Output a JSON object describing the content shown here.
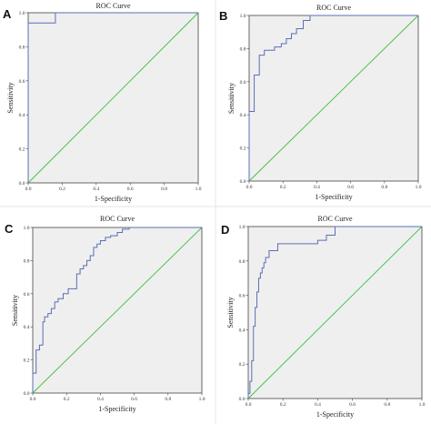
{
  "chart_data": [
    {
      "type": "line",
      "panel": "A",
      "title": "ROC Curve",
      "xlabel": "1-Specificity",
      "ylabel": "Sensitivity",
      "xlim": [
        0,
        1
      ],
      "ylim": [
        0,
        1
      ],
      "xticks": [
        "0.0",
        "0.2",
        "0.4",
        "0.6",
        "0.8",
        "1.0"
      ],
      "yticks": [
        "0.0",
        "0.2",
        "0.4",
        "0.6",
        "0.8",
        "1.0"
      ],
      "series": [
        {
          "x": [
            0,
            0,
            0.16,
            0.16,
            1
          ],
          "y": [
            0,
            0.94,
            0.94,
            1,
            1
          ]
        },
        {
          "x": [
            0,
            1
          ],
          "y": [
            0,
            1
          ]
        }
      ],
      "colors": {
        "roc": "#5a6fb4",
        "reference": "#3fbf3f"
      }
    },
    {
      "type": "line",
      "panel": "B",
      "title": "ROC Curve",
      "xlabel": "1-Specificity",
      "ylabel": "Sensitivity",
      "xlim": [
        0,
        1
      ],
      "ylim": [
        0,
        1
      ],
      "xticks": [
        "0.0",
        "0.2",
        "0.4",
        "0.6",
        "0.8",
        "1.0"
      ],
      "yticks": [
        "0.0",
        "0.2",
        "0.4",
        "0.6",
        "0.8",
        "1.0"
      ],
      "series": [
        {
          "x": [
            0,
            0,
            0.03,
            0.03,
            0.06,
            0.06,
            0.09,
            0.09,
            0.15,
            0.15,
            0.19,
            0.19,
            0.22,
            0.22,
            0.25,
            0.25,
            0.28,
            0.28,
            0.32,
            0.32,
            0.36,
            0.36,
            1
          ],
          "y": [
            0,
            0.42,
            0.42,
            0.64,
            0.64,
            0.76,
            0.76,
            0.79,
            0.79,
            0.81,
            0.81,
            0.83,
            0.83,
            0.86,
            0.86,
            0.89,
            0.89,
            0.92,
            0.92,
            0.97,
            0.97,
            1,
            1
          ]
        },
        {
          "x": [
            0,
            1
          ],
          "y": [
            0,
            1
          ]
        }
      ],
      "colors": {
        "roc": "#5a6fb4",
        "reference": "#3fbf3f"
      }
    },
    {
      "type": "line",
      "panel": "C",
      "title": "ROC Curve",
      "xlabel": "1-Specificity",
      "ylabel": "Sensitivity",
      "xlim": [
        0,
        1
      ],
      "ylim": [
        0,
        1
      ],
      "xticks": [
        "0.0",
        "0.2",
        "0.4",
        "0.6",
        "0.8",
        "1.0"
      ],
      "yticks": [
        "0.0",
        "0.2",
        "0.4",
        "0.6",
        "0.8",
        "1.0"
      ],
      "series": [
        {
          "x": [
            0,
            0,
            0.02,
            0.02,
            0.04,
            0.04,
            0.06,
            0.06,
            0.07,
            0.07,
            0.09,
            0.09,
            0.11,
            0.11,
            0.13,
            0.13,
            0.15,
            0.15,
            0.18,
            0.18,
            0.21,
            0.21,
            0.26,
            0.26,
            0.28,
            0.28,
            0.3,
            0.3,
            0.32,
            0.32,
            0.34,
            0.34,
            0.36,
            0.36,
            0.38,
            0.38,
            0.4,
            0.4,
            0.43,
            0.43,
            0.46,
            0.46,
            0.5,
            0.5,
            0.53,
            0.53,
            0.57,
            0.57,
            1
          ],
          "y": [
            0,
            0.12,
            0.12,
            0.26,
            0.26,
            0.29,
            0.29,
            0.43,
            0.43,
            0.46,
            0.46,
            0.48,
            0.48,
            0.51,
            0.51,
            0.55,
            0.55,
            0.57,
            0.57,
            0.6,
            0.6,
            0.63,
            0.63,
            0.72,
            0.72,
            0.75,
            0.75,
            0.77,
            0.77,
            0.8,
            0.8,
            0.83,
            0.83,
            0.88,
            0.88,
            0.9,
            0.9,
            0.92,
            0.92,
            0.94,
            0.94,
            0.95,
            0.95,
            0.97,
            0.97,
            0.99,
            0.99,
            1,
            1
          ]
        },
        {
          "x": [
            0,
            1
          ],
          "y": [
            0,
            1
          ]
        }
      ],
      "colors": {
        "roc": "#5a6fb4",
        "reference": "#3fbf3f"
      }
    },
    {
      "type": "line",
      "panel": "D",
      "title": "ROC Curve",
      "xlabel": "1-Specificity",
      "ylabel": "Sensitivity",
      "xlim": [
        0,
        1
      ],
      "ylim": [
        0,
        1
      ],
      "xticks": [
        "0.0",
        "0.2",
        "0.4",
        "0.6",
        "0.8",
        "1.0"
      ],
      "yticks": [
        "0.0",
        "0.2",
        "0.4",
        "0.6",
        "0.8",
        "1.0"
      ],
      "series": [
        {
          "x": [
            0,
            0,
            0.01,
            0.01,
            0.02,
            0.02,
            0.03,
            0.03,
            0.04,
            0.04,
            0.05,
            0.05,
            0.06,
            0.06,
            0.07,
            0.07,
            0.08,
            0.08,
            0.09,
            0.09,
            0.1,
            0.1,
            0.12,
            0.12,
            0.17,
            0.17,
            0.4,
            0.4,
            0.45,
            0.45,
            0.5,
            0.5,
            1
          ],
          "y": [
            0,
            0.03,
            0.03,
            0.1,
            0.1,
            0.22,
            0.22,
            0.42,
            0.42,
            0.53,
            0.53,
            0.62,
            0.62,
            0.7,
            0.7,
            0.73,
            0.73,
            0.76,
            0.76,
            0.79,
            0.79,
            0.82,
            0.82,
            0.86,
            0.86,
            0.9,
            0.9,
            0.92,
            0.92,
            0.95,
            0.95,
            1,
            1
          ]
        },
        {
          "x": [
            0,
            1
          ],
          "y": [
            0,
            1
          ]
        }
      ],
      "colors": {
        "roc": "#5a6fb4",
        "reference": "#3fbf3f"
      }
    }
  ]
}
